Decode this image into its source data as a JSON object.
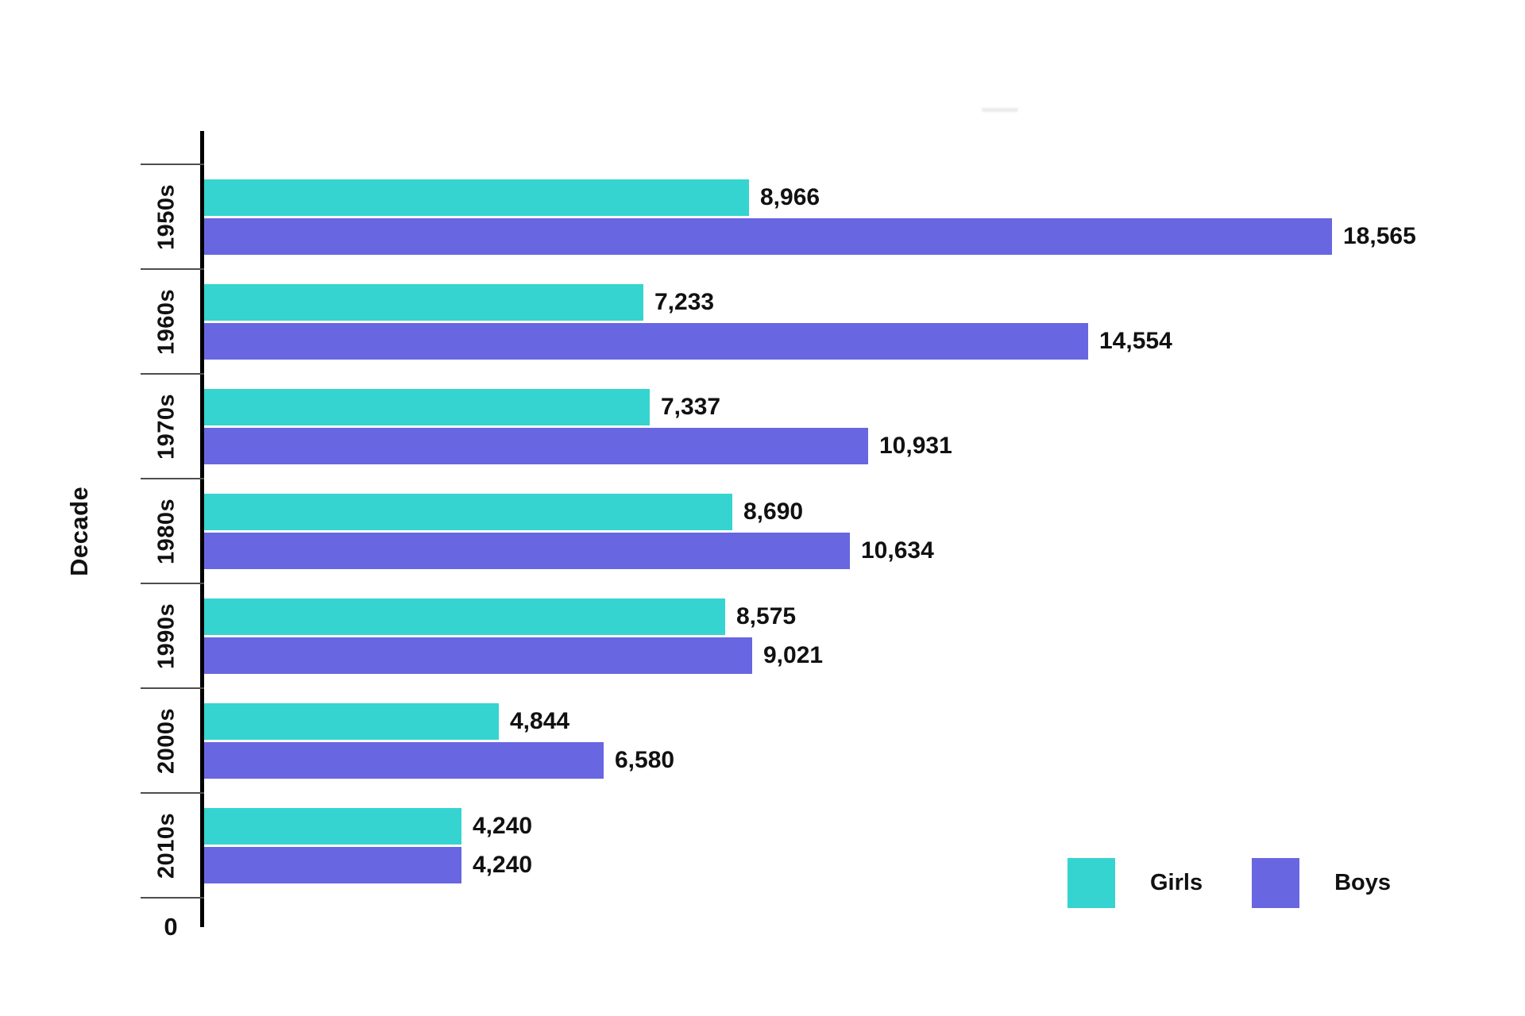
{
  "chart_data": {
    "type": "bar",
    "orientation": "horizontal",
    "title": "",
    "ylabel": "Decade",
    "xlabel": "",
    "origin_tick_label": "0",
    "xlim": [
      0,
      18565
    ],
    "grid": false,
    "legend_position": "bottom-right",
    "categories": [
      "1950s",
      "1960s",
      "1970s",
      "1980s",
      "1990s",
      "2000s",
      "2010s"
    ],
    "series": [
      {
        "name": "Girls",
        "color": "#35D4D0",
        "values": [
          8966,
          7233,
          7337,
          8690,
          8575,
          4844,
          4240
        ],
        "labels": [
          "8,966",
          "7,233",
          "7,337",
          "8,690",
          "8,575",
          "4,844",
          "4,240"
        ]
      },
      {
        "name": "Boys",
        "color": "#6866E0",
        "values": [
          18565,
          14554,
          10931,
          10634,
          9021,
          6580,
          4240
        ],
        "labels": [
          "18,565",
          "14,554",
          "10,931",
          "10,634",
          "9,021",
          "6,580",
          "4,240"
        ]
      }
    ]
  }
}
